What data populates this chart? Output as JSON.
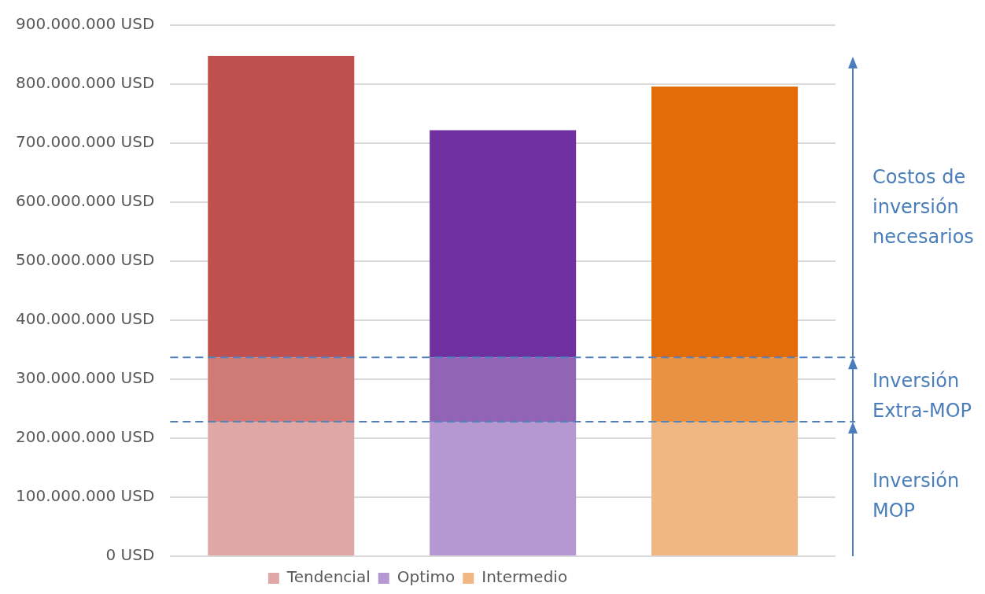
{
  "chart_data": {
    "type": "bar",
    "stacked": true,
    "categories": [
      null,
      null,
      null
    ],
    "series": [
      {
        "name": "Tendencial",
        "color": "#dfa8a7",
        "values": [
          228000000,
          null,
          null
        ]
      },
      {
        "name": "Optimo",
        "color": "#b597d1",
        "values": [
          null,
          228000000,
          null
        ]
      },
      {
        "name": "Intermedio",
        "color": "#f0b784",
        "values": [
          null,
          null,
          228000000
        ]
      },
      {
        "colors": [
          "#d07a76",
          "#9264b6",
          "#eb9142"
        ],
        "values": [
          109000000,
          109000000,
          109000000
        ]
      },
      {
        "colors": [
          "#c0504d",
          "#7030a0",
          "#e36c09"
        ],
        "values": [
          511000000,
          385000000,
          459000000
        ]
      }
    ],
    "ylim": [
      0,
      900000000
    ],
    "yticks": [
      {
        "value": 0,
        "label": "0 USD"
      },
      {
        "value": 100000000,
        "label": "100.000.000 USD"
      },
      {
        "value": 200000000,
        "label": "200.000.000 USD"
      },
      {
        "value": 300000000,
        "label": "300.000.000 USD"
      },
      {
        "value": 400000000,
        "label": "400.000.000 USD"
      },
      {
        "value": 500000000,
        "label": "500.000.000 USD"
      },
      {
        "value": 600000000,
        "label": "600.000.000 USD"
      },
      {
        "value": 700000000,
        "label": "700.000.000 USD"
      },
      {
        "value": 800000000,
        "label": "800.000.000 USD"
      },
      {
        "value": 900000000,
        "label": "900.000.000 USD"
      }
    ],
    "grid": "y",
    "legend": "bottom",
    "tick_labels": "y",
    "ref_lines": [
      {
        "axis": "y",
        "value": 228000000,
        "color": "#4f81bd",
        "line_style": "dashed"
      },
      {
        "axis": "y",
        "value": 337000000,
        "color": "#4f81bd",
        "line_style": "dashed"
      }
    ],
    "annotations": [
      "Costos de inversión necesarios",
      "Inversión Extra-MOP",
      "Inversión MOP"
    ]
  }
}
